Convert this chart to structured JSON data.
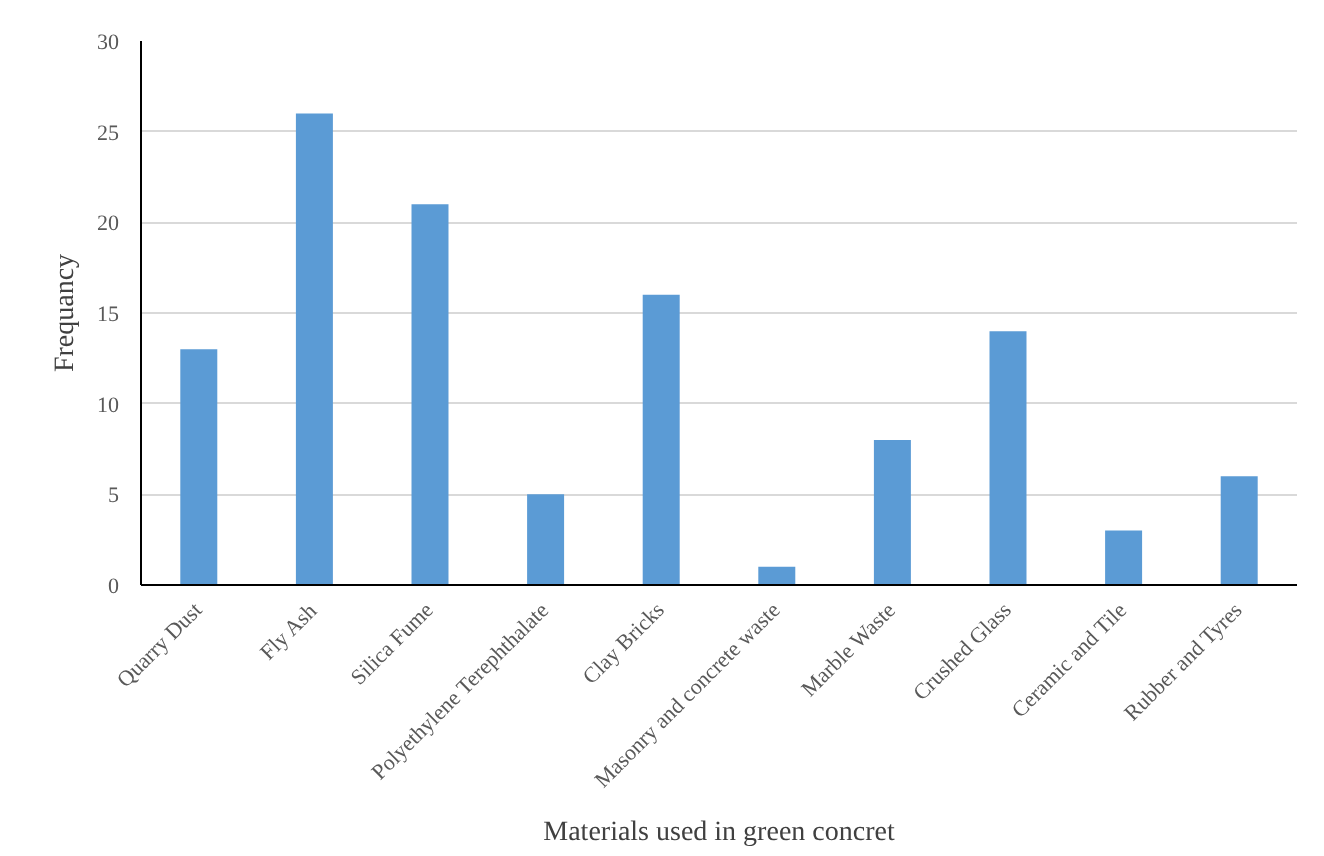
{
  "chart_data": {
    "type": "bar",
    "categories": [
      "Quarry Dust",
      "Fly Ash",
      "Silica Fume",
      "Polyethylene Terephthalate",
      "Clay Bricks",
      "Masonry and concrete waste",
      "Marble Waste",
      "Crushed Glass",
      "Ceramic and Tile",
      "Rubber and Tyres"
    ],
    "values": [
      13,
      26,
      21,
      5,
      16,
      1,
      8,
      14,
      3,
      6
    ],
    "color": "#5b9bd5",
    "xlabel": "Materials used in green concret",
    "ylabel": "Frequancy",
    "ylim": [
      0,
      30
    ],
    "yticks": [
      0,
      5,
      10,
      15,
      20,
      25,
      30
    ],
    "grid": "y"
  }
}
